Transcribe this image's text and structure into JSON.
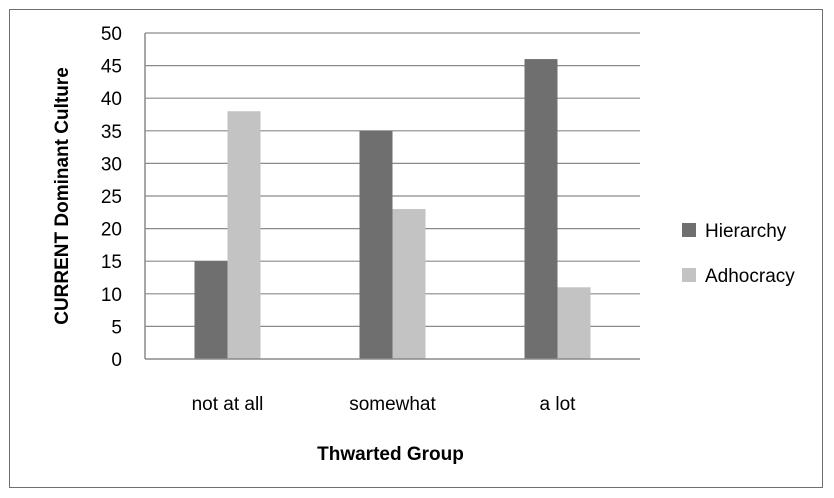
{
  "chart_data": {
    "type": "bar",
    "categories": [
      "not at all",
      "somewhat",
      "a lot"
    ],
    "series": [
      {
        "name": "Hierarchy",
        "values": [
          15,
          35,
          46
        ],
        "color": "#6f6f6f"
      },
      {
        "name": "Adhocracy",
        "values": [
          38,
          23,
          11
        ],
        "color": "#c3c3c3"
      }
    ],
    "xlabel": "Thwarted Group",
    "ylabel": "CURRENT Dominant Culture",
    "ylim": [
      0,
      50
    ],
    "yticks": [
      0,
      5,
      10,
      15,
      20,
      25,
      30,
      35,
      40,
      45,
      50
    ],
    "grid": true,
    "legend_position": "right"
  }
}
